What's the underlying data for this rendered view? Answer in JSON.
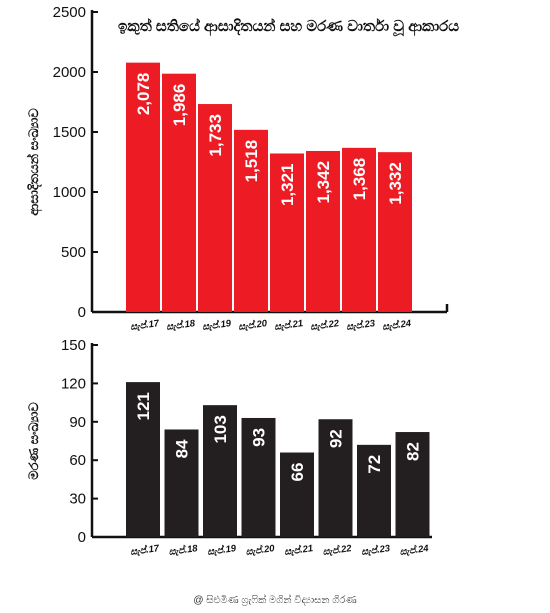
{
  "title": "ඉකුත් සතියේ ආසාදිතයන් සහ මරණ වාර්තා වූ ආකාරය",
  "credit": "@ සිළුමිණ ග්‍රැෆික් මගින් විද්‍යාසන ගිරණ",
  "colors": {
    "cases": "#ed1c24",
    "deaths": "#231f20",
    "axis": "#111111"
  },
  "chart_data": [
    {
      "type": "bar",
      "title": "",
      "ylabel": "ආසාදිතයන් සංඛ්‍යාව",
      "xlabel": "",
      "ylim": [
        0,
        2500
      ],
      "yticks": [
        0,
        500,
        1000,
        1500,
        2000,
        2500
      ],
      "categories": [
        "සැප්.17",
        "සැප්.18",
        "සැප්.19",
        "සැප්.20",
        "සැප්.21",
        "සැප්.22",
        "සැප්.23",
        "සැප්.24"
      ],
      "series": [
        {
          "values": [
            2078,
            1986,
            1733,
            1518,
            1321,
            1342,
            1368,
            1332
          ],
          "labels": [
            "2,078",
            "1,986",
            "1,733",
            "1,518",
            "1,321",
            "1,342",
            "1,368",
            "1,332"
          ]
        }
      ],
      "color": "#ed1c24",
      "grid": false
    },
    {
      "type": "bar",
      "title": "",
      "ylabel": "මරණ සංඛ්‍යාව",
      "xlabel": "",
      "ylim": [
        0,
        150
      ],
      "yticks": [
        0,
        30,
        60,
        90,
        120,
        150
      ],
      "categories": [
        "සැප්.17",
        "සැප්.18",
        "සැප්.19",
        "සැප්.20",
        "සැප්.21",
        "සැප්.22",
        "සැප්.23",
        "සැප්.24"
      ],
      "series": [
        {
          "values": [
            121,
            84,
            103,
            93,
            66,
            92,
            72,
            82
          ],
          "labels": [
            "121",
            "84",
            "103",
            "93",
            "66",
            "92",
            "72",
            "82"
          ]
        }
      ],
      "color": "#231f20",
      "grid": false
    }
  ]
}
